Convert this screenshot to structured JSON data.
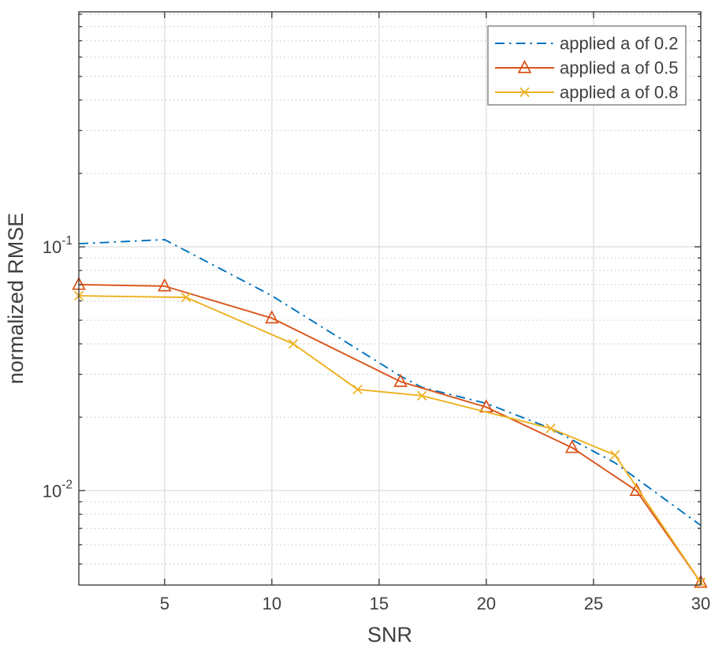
{
  "chart_data": {
    "type": "line",
    "title": "",
    "xlabel": "SNR",
    "ylabel": "normalized RMSE",
    "xlim": [
      1,
      30
    ],
    "ylim": [
      0.0041,
      0.92
    ],
    "yscale": "log",
    "xticks": [
      5,
      10,
      15,
      20,
      25,
      30
    ],
    "ytick_values": [
      0.1,
      0.01
    ],
    "ytick_labels": [
      "10^-1",
      "10^-2"
    ],
    "grid": "on",
    "minor_grid": "on",
    "legend_position": "northeast",
    "legend_entries": [
      "applied a of 0.2",
      "applied a of 0.5",
      "applied a of 0.8"
    ],
    "series": [
      {
        "name": "applied a of 0.2",
        "color": "#0072BD",
        "line_style": "dash-dot",
        "marker": "none",
        "x": [
          1,
          5,
          10,
          16,
          17,
          20,
          23,
          26,
          30
        ],
        "y": [
          0.103,
          0.107,
          0.063,
          0.0295,
          0.0265,
          0.0228,
          0.018,
          0.013,
          0.0072
        ]
      },
      {
        "name": "applied a of 0.5",
        "color": "#D95319",
        "line_style": "solid",
        "marker": "triangle",
        "x": [
          1,
          5,
          10,
          16,
          20,
          24,
          27,
          30
        ],
        "y": [
          0.07,
          0.069,
          0.051,
          0.028,
          0.022,
          0.015,
          0.01,
          0.0042
        ]
      },
      {
        "name": "applied a of 0.8",
        "color": "#EDB120",
        "line_style": "solid",
        "marker": "x",
        "x": [
          1,
          6,
          11,
          14,
          17,
          23,
          26,
          30
        ],
        "y": [
          0.063,
          0.062,
          0.04,
          0.026,
          0.0245,
          0.018,
          0.014,
          0.0042
        ]
      }
    ],
    "colors": {
      "axis": "#3f3f3f",
      "major_grid": "#dcdcdc",
      "minor_grid": "#c6c6c6",
      "legend_border": "#777777",
      "background": "#ffffff"
    }
  }
}
